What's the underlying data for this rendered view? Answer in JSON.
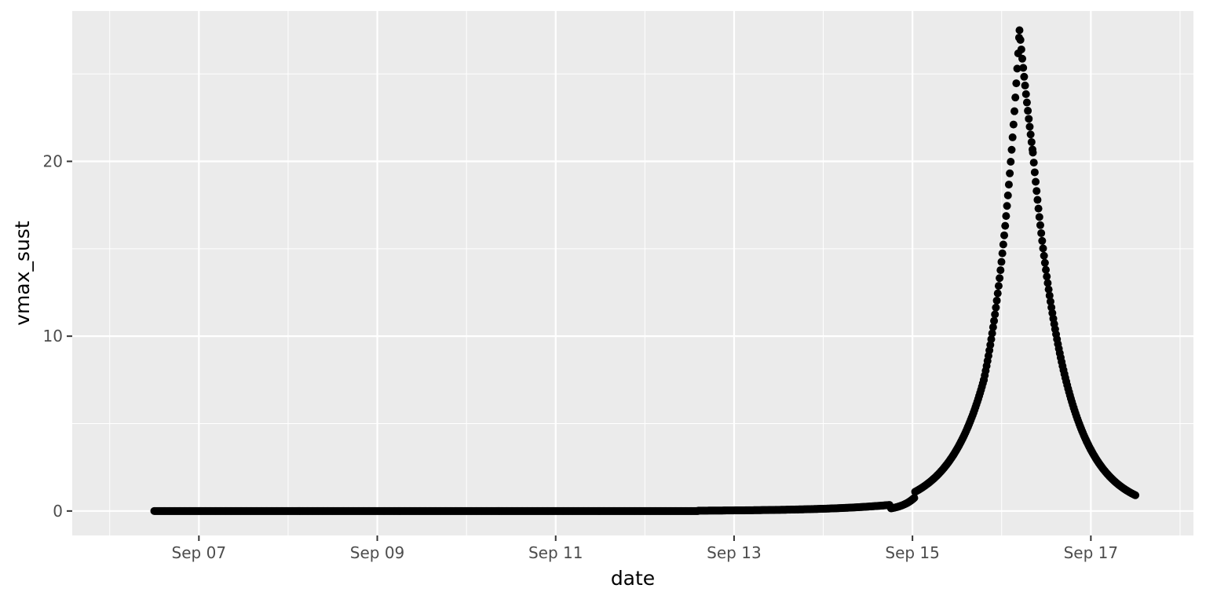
{
  "chart_data": {
    "type": "scatter",
    "title": "",
    "xlabel": "date",
    "ylabel": "vmax_sust",
    "x_unit": "days since Sep 06 00:00",
    "xlim": [
      5.58,
      18.15
    ],
    "ylim": [
      -1.4,
      28.6
    ],
    "x_ticks": [
      {
        "value": 7,
        "label": "Sep 07"
      },
      {
        "value": 9,
        "label": "Sep 09"
      },
      {
        "value": 11,
        "label": "Sep 11"
      },
      {
        "value": 13,
        "label": "Sep 13"
      },
      {
        "value": 15,
        "label": "Sep 15"
      },
      {
        "value": 17,
        "label": "Sep 17"
      }
    ],
    "x_minor_ticks": [
      6,
      8,
      10,
      12,
      14,
      16,
      18
    ],
    "y_ticks": [
      {
        "value": 0,
        "label": "0"
      },
      {
        "value": 10,
        "label": "10"
      },
      {
        "value": 20,
        "label": "20"
      }
    ],
    "y_minor_ticks": [
      5,
      15,
      25
    ],
    "grid": true,
    "panel_background": "#ebebeb",
    "grid_color": "#ffffff",
    "point_color": "#000000",
    "series": [
      {
        "name": "vmax_sust",
        "note": "points approximately every 15 minutes; values estimated from gridlines",
        "segments": [
          {
            "x_start": 6.5,
            "x_end": 12.6,
            "step": 0.0104,
            "values": {
              "mode": "constant",
              "y": 0.0
            }
          },
          {
            "x_start": 12.6,
            "x_end": 14.75,
            "step": 0.0104,
            "values": {
              "mode": "exp",
              "y0": 0.02,
              "y1": 0.35
            }
          },
          {
            "x_start": 14.76,
            "x_end": 15.02,
            "step": 0.0104,
            "values": {
              "mode": "exp",
              "y0": 0.15,
              "y1": 0.75
            }
          },
          {
            "x_start": 15.03,
            "x_end": 15.8,
            "step": 0.0104,
            "values": {
              "mode": "exp",
              "y0": 1.1,
              "y1": 7.5
            }
          },
          {
            "x_start": 15.8,
            "x_end": 16.2,
            "step": 0.0104,
            "values": {
              "mode": "exp",
              "y0": 7.5,
              "y1": 27.5
            }
          },
          {
            "x_start": 16.2,
            "x_end": 16.35,
            "step": 0.0104,
            "values": {
              "mode": "exp",
              "y0": 27.5,
              "y1": 20.5
            }
          },
          {
            "x_start": 16.35,
            "x_end": 17.0,
            "step": 0.0104,
            "values": {
              "mode": "exp",
              "y0": 20.5,
              "y1": 3.5
            }
          },
          {
            "x_start": 17.0,
            "x_end": 17.5,
            "step": 0.0104,
            "values": {
              "mode": "exp",
              "y0": 3.5,
              "y1": 0.9
            }
          }
        ]
      }
    ]
  }
}
